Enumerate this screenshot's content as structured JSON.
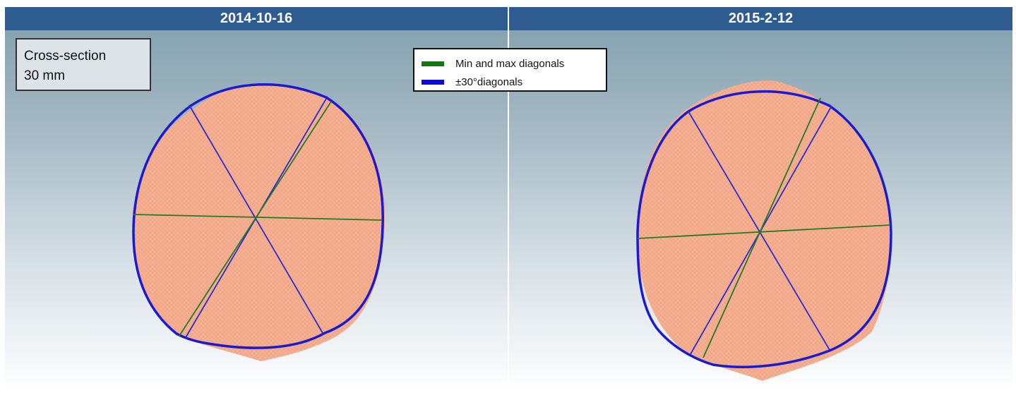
{
  "panels": {
    "left": {
      "date": "2014-10-16"
    },
    "right": {
      "date": "2015-2-12"
    }
  },
  "annotation": {
    "line1": "Cross-section",
    "line2": "30 mm"
  },
  "legend": {
    "items": [
      {
        "label": "Min and max diagonals",
        "color": "#0e7a0e"
      },
      {
        "label": "±30°diagonals",
        "color": "#0a0ae6"
      }
    ]
  },
  "colors": {
    "header": "#2e5b90",
    "mesh": "#f5a07e",
    "contour": "#1e1ec8",
    "green_diagonal": "#1f7a1f",
    "blue_diagonal": "#2020c8"
  }
}
